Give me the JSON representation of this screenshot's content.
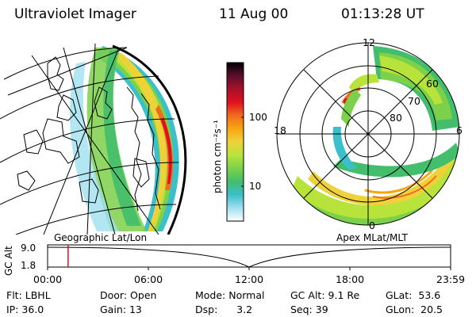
{
  "header": {
    "title": "Ultraviolet Imager",
    "date": "11 Aug 00",
    "time": "01:13:28 UT"
  },
  "colorbar": {
    "unit_label": "photon cm⁻²s⁻¹",
    "ticks": [
      "100",
      "10"
    ],
    "colors": [
      "#000000",
      "#5a0e2f",
      "#a81228",
      "#e0101f",
      "#f26b1d",
      "#f7a612",
      "#efd23a",
      "#b8e33b",
      "#7cd04a",
      "#43be6c",
      "#3bbfca",
      "#9fe0ef",
      "#ffffff"
    ]
  },
  "panels": {
    "left_caption": "Geographic Lat/Lon",
    "right_caption": "Apex MLat/MLT"
  },
  "polar": {
    "mlt_labels": [
      "12",
      "18",
      "6",
      "0"
    ],
    "mlat_labels": [
      "60",
      "70",
      "80"
    ]
  },
  "timeline": {
    "axis_label": "GC Alt",
    "y_labels": [
      "9.0",
      "1.8"
    ],
    "x_labels": [
      "00:00",
      "06:00",
      "12:00",
      "18:00",
      "23:59"
    ],
    "marker_fraction": 0.0509,
    "marker_color": "#e0101f"
  },
  "info": {
    "row1": [
      {
        "label": "Flt:",
        "value": "LBHL"
      },
      {
        "label": "Door:",
        "value": "Open"
      },
      {
        "label": "Mode:",
        "value": "Normal"
      },
      {
        "label": "GC Alt:",
        "value": "9.1 Re"
      },
      {
        "label": "GLat:",
        "value": "53.6"
      }
    ],
    "row2": [
      {
        "label": "IP:",
        "value": "36.0"
      },
      {
        "label": "Gain:",
        "value": "13"
      },
      {
        "label": "Dsp:",
        "value": "3.2"
      },
      {
        "label": "Seq:",
        "value": "39"
      },
      {
        "label": "GLon:",
        "value": "20.5"
      }
    ]
  }
}
